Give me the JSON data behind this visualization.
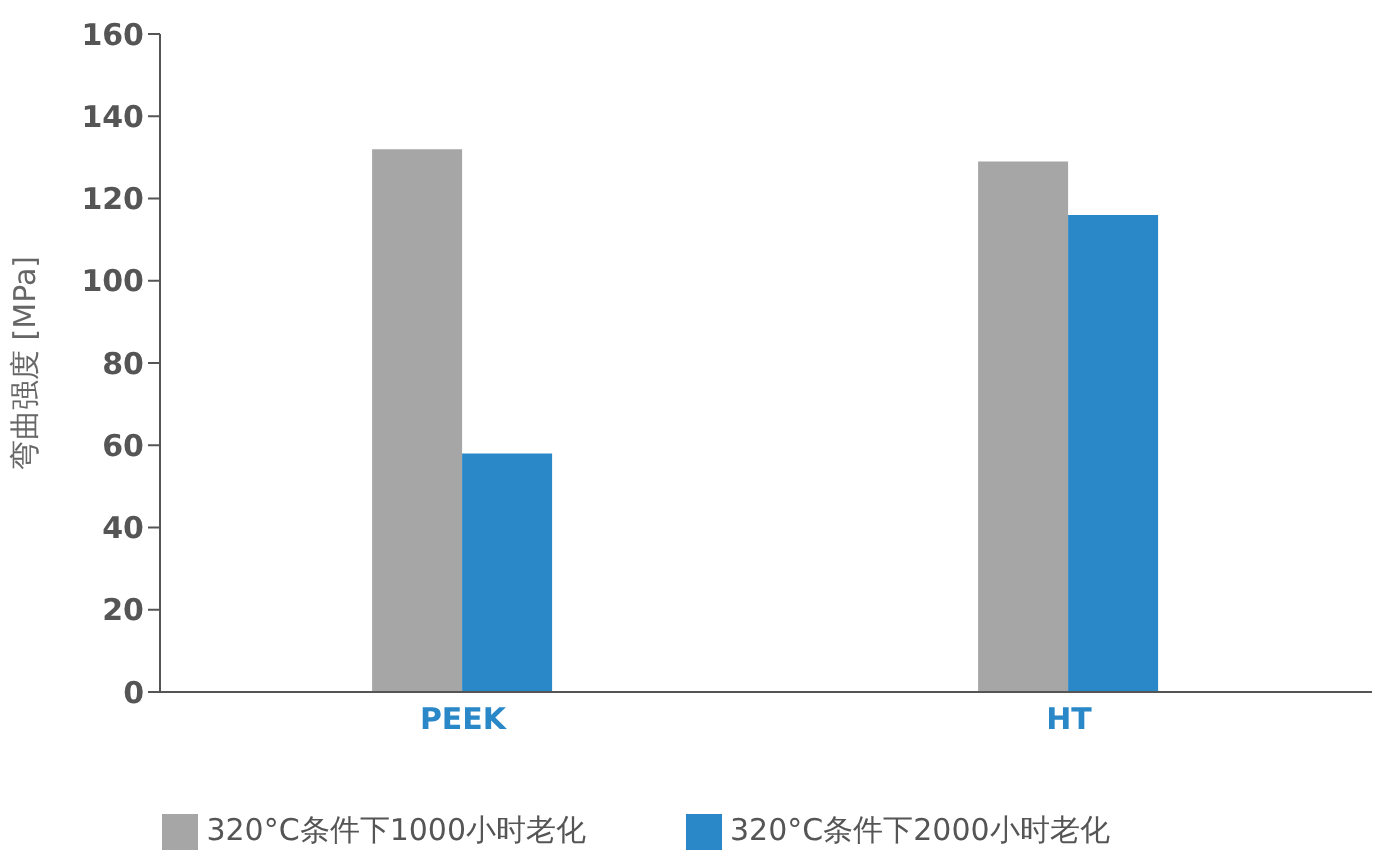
{
  "chart_data": {
    "type": "bar",
    "ylabel": "弯曲强度 [MPa]",
    "categories": [
      "PEEK",
      "HT"
    ],
    "series": [
      {
        "name": "320°C条件下1000小时老化",
        "color": "#a6a6a6",
        "values": [
          132,
          129
        ]
      },
      {
        "name": "320°C条件下2000小时老化",
        "color": "#2a88c9",
        "values": [
          58,
          116
        ]
      }
    ],
    "ylim": [
      0,
      160
    ],
    "yticks": [
      0,
      20,
      40,
      60,
      80,
      100,
      120,
      140,
      160
    ],
    "grid": false,
    "legend": "bottom"
  }
}
